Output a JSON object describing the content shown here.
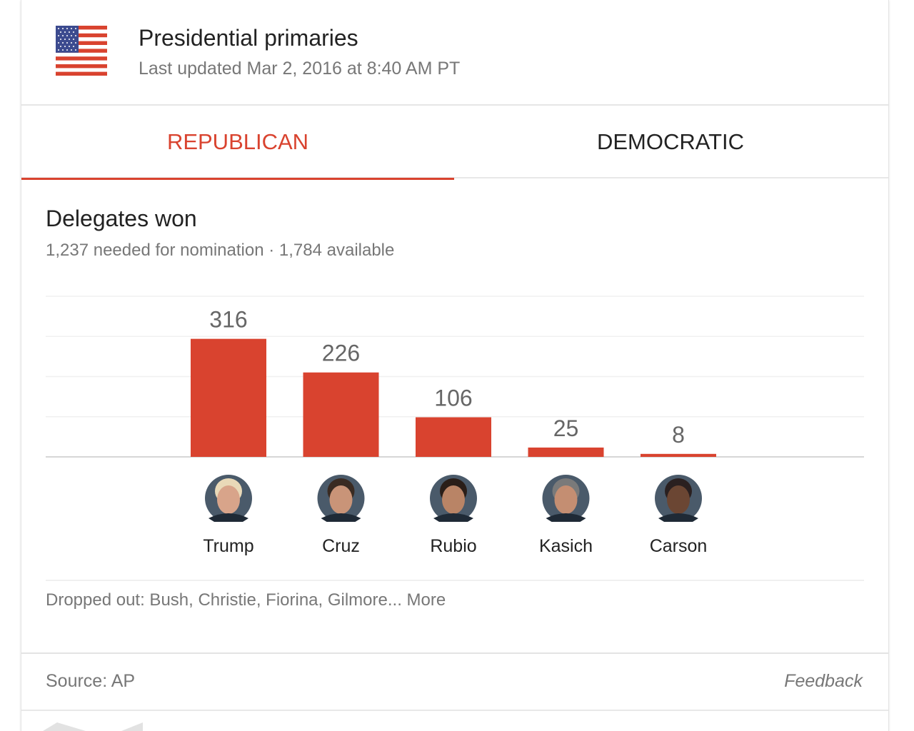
{
  "header": {
    "title": "Presidential primaries",
    "updated": "Last updated Mar 2, 2016 at 8:40 AM PT",
    "flag_icon": "us-flag-icon"
  },
  "tabs": [
    {
      "label": "REPUBLICAN",
      "active": true
    },
    {
      "label": "DEMOCRATIC",
      "active": false
    }
  ],
  "section": {
    "title": "Delegates won",
    "subtitle": "1,237 needed for nomination · 1,784 available"
  },
  "chart_data": {
    "type": "bar",
    "categories": [
      "Trump",
      "Cruz",
      "Rubio",
      "Kasich",
      "Carson"
    ],
    "values": [
      316,
      226,
      106,
      25,
      8
    ],
    "title": "Delegates won",
    "xlabel": "",
    "ylabel": "",
    "ylim": [
      0,
      430
    ],
    "grid": true,
    "bar_color": "#d9432f"
  },
  "dropped": {
    "text": "Dropped out: Bush, Christie, Fiorina, Gilmore...",
    "more": "More"
  },
  "footer": {
    "source": "Source: AP",
    "feedback": "Feedback"
  }
}
